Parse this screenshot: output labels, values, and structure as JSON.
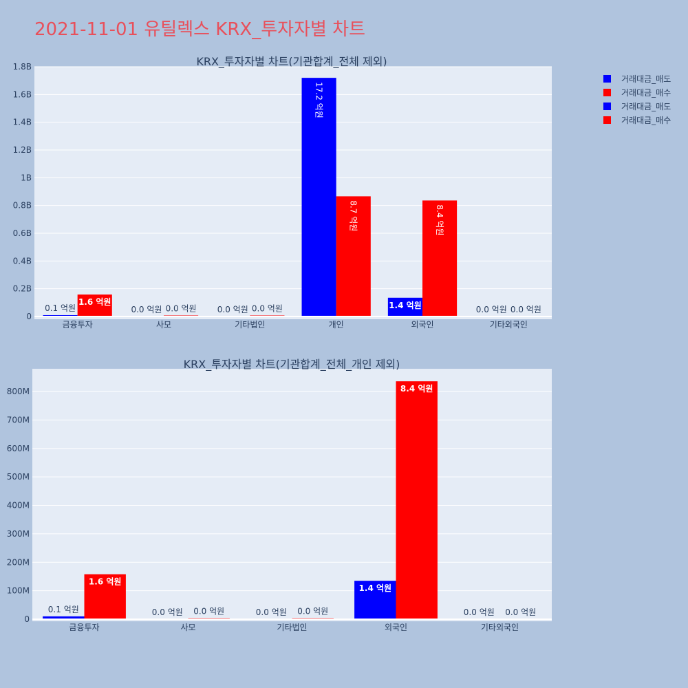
{
  "page_title": "2021-11-01 유틸렉스 KRX_투자자별 차트",
  "colors": {
    "sell": "#0000ff",
    "buy": "#ff0000",
    "plot_bg": "#e5ecf6",
    "page_bg": "#b0c4de",
    "title": "#e8505b"
  },
  "legend": [
    {
      "name": "거래대금_매도",
      "color": "#0000ff"
    },
    {
      "name": "거래대금_매수",
      "color": "#ff0000"
    },
    {
      "name": "거래대금_매도",
      "color": "#0000ff"
    },
    {
      "name": "거래대금_매수",
      "color": "#ff0000"
    }
  ],
  "chart_data": [
    {
      "type": "bar",
      "title": "KRX_투자자별 차트(기관합계_전체 제외)",
      "categories": [
        "금융투자",
        "사모",
        "기타법인",
        "개인",
        "외국인",
        "기타외국인"
      ],
      "series": [
        {
          "name": "거래대금_매도",
          "color": "#0000ff",
          "values": [
            10000000,
            0,
            0,
            1720000000,
            135000000,
            0
          ],
          "labels": [
            "0.1 억원",
            "0.0 억원",
            "0.0 억원",
            "17.2 억원",
            "1.4 억원",
            "0.0 억원"
          ]
        },
        {
          "name": "거래대금_매수",
          "color": "#ff0000",
          "values": [
            158000000,
            2000000,
            2000000,
            866000000,
            836000000,
            0
          ],
          "labels": [
            "1.6 억원",
            "0.0 억원",
            "0.0 억원",
            "8.7 억원",
            "8.4 억원",
            "0.0 억원"
          ]
        }
      ],
      "ylim": [
        0,
        1800000000
      ],
      "yticks": [
        0,
        200000000,
        400000000,
        600000000,
        800000000,
        1000000000,
        1200000000,
        1400000000,
        1600000000,
        1800000000
      ],
      "ytick_labels": [
        "0",
        "0.2B",
        "0.4B",
        "0.6B",
        "0.8B",
        "1B",
        "1.2B",
        "1.4B",
        "1.6B",
        "1.8B"
      ],
      "grid": true
    },
    {
      "type": "bar",
      "title": "KRX_투자자별 차트(기관합계_전체_개인 제외)",
      "categories": [
        "금융투자",
        "사모",
        "기타법인",
        "외국인",
        "기타외국인"
      ],
      "series": [
        {
          "name": "거래대금_매도",
          "color": "#0000ff",
          "values": [
            10000000,
            0,
            0,
            135000000,
            0
          ],
          "labels": [
            "0.1 억원",
            "0.0 억원",
            "0.0 억원",
            "1.4 억원",
            "0.0 억원"
          ]
        },
        {
          "name": "거래대금_매수",
          "color": "#ff0000",
          "values": [
            158000000,
            2000000,
            2000000,
            836000000,
            0
          ],
          "labels": [
            "1.6 억원",
            "0.0 억원",
            "0.0 억원",
            "8.4 억원",
            "0.0 억원"
          ]
        }
      ],
      "ylim": [
        0,
        880000000
      ],
      "yticks": [
        0,
        100000000,
        200000000,
        300000000,
        400000000,
        500000000,
        600000000,
        700000000,
        800000000
      ],
      "ytick_labels": [
        "0",
        "100M",
        "200M",
        "300M",
        "400M",
        "500M",
        "600M",
        "700M",
        "800M"
      ],
      "grid": true
    }
  ]
}
